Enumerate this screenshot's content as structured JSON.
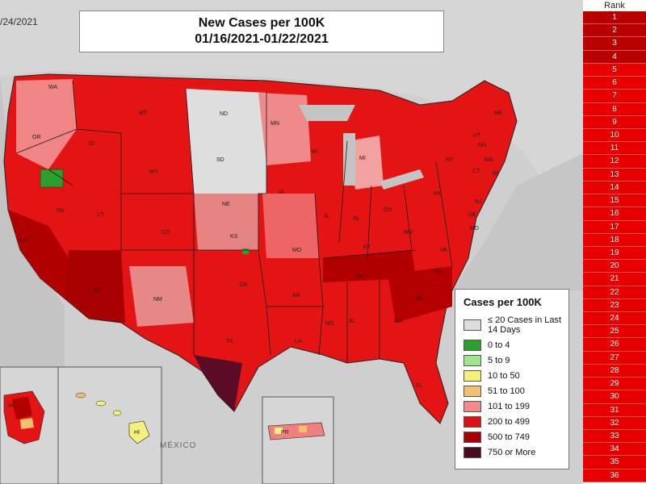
{
  "map": {
    "date_corner": "/24/2021",
    "title_line1": "New Cases per 100K",
    "title_line2": "01/16/2021-01/22/2021",
    "mexico_label": "MÉXICO",
    "state_labels": [
      "WA",
      "OR",
      "ID",
      "MT",
      "ND",
      "MN",
      "WY",
      "SD",
      "NV",
      "CA",
      "UT",
      "CO",
      "NE",
      "KS",
      "AZ",
      "NM",
      "OK",
      "TX",
      "IA",
      "MO",
      "AR",
      "LA",
      "WI",
      "MI",
      "IL",
      "IN",
      "OH",
      "KY",
      "TN",
      "MS",
      "AL",
      "GA",
      "FL",
      "SC",
      "NC",
      "VA",
      "WV",
      "PA",
      "NY",
      "VT",
      "NH",
      "ME",
      "MA",
      "CT",
      "RI",
      "NJ",
      "DE",
      "MD",
      "AK",
      "HI",
      "PR"
    ]
  },
  "legend": {
    "title": "Cases per 100K",
    "items": [
      {
        "label": "≤ 20 Cases in Last 14 Days",
        "color": "#dcdcdc"
      },
      {
        "label": "0 to 4",
        "color": "#2ca02c"
      },
      {
        "label": "5 to 9",
        "color": "#9ee88a"
      },
      {
        "label": "10 to 50",
        "color": "#f5f07a"
      },
      {
        "label": "51 to 100",
        "color": "#f5c06e"
      },
      {
        "label": "101 to 199",
        "color": "#f28a8a"
      },
      {
        "label": "200 to 499",
        "color": "#e01010"
      },
      {
        "label": "500 to 749",
        "color": "#a80000"
      },
      {
        "label": "750 or More",
        "color": "#4a0a22"
      }
    ]
  },
  "rank": {
    "header": "Rank",
    "dark_color": "#b80000",
    "light_color": "#e80000",
    "dark_count": 4,
    "values": [
      "1",
      "2",
      "3",
      "4",
      "5",
      "6",
      "7",
      "8",
      "9",
      "10",
      "11",
      "12",
      "13",
      "14",
      "15",
      "16",
      "17",
      "18",
      "19",
      "20",
      "21",
      "22",
      "23",
      "24",
      "25",
      "26",
      "27",
      "28",
      "29",
      "30",
      "31",
      "32",
      "33",
      "34",
      "35",
      "36"
    ]
  }
}
